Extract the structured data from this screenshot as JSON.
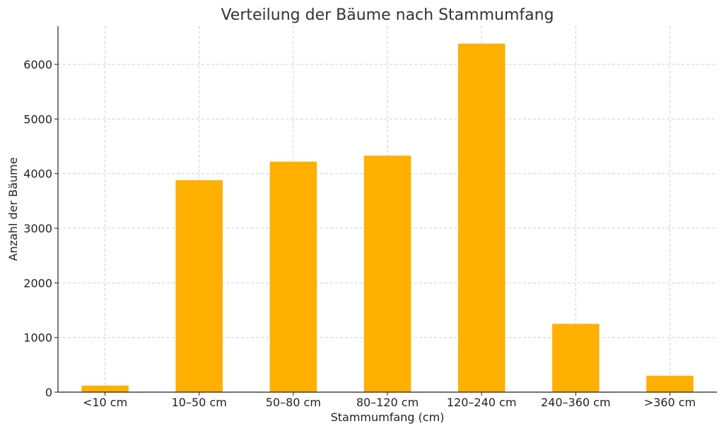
{
  "chart_data": {
    "type": "bar",
    "title": "Verteilung der Bäume nach Stammumfang",
    "xlabel": "Stammumfang (cm)",
    "ylabel": "Anzahl der Bäume",
    "categories": [
      "<10 cm",
      "10–50 cm",
      "50–80 cm",
      "80–120 cm",
      "120–240 cm",
      "240–360 cm",
      ">360 cm"
    ],
    "values": [
      120,
      3880,
      4220,
      4330,
      6380,
      1250,
      300
    ],
    "ylim": [
      0,
      6700
    ],
    "yticks": [
      0,
      1000,
      2000,
      3000,
      4000,
      5000,
      6000
    ],
    "grid": true,
    "bar_color": "#FFB000"
  }
}
